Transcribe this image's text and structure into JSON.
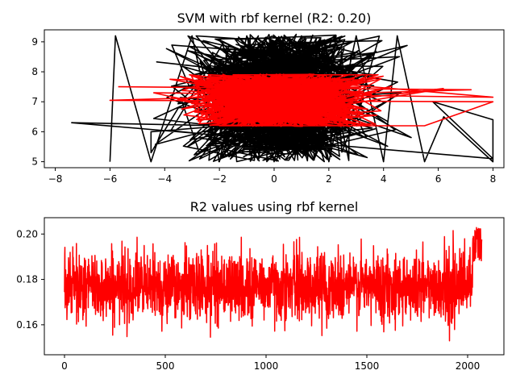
{
  "chart_data": [
    {
      "type": "line",
      "title": "SVM with rbf kernel (R2: 0.20)",
      "xlabel": "",
      "ylabel": "",
      "xlim": [
        -8.4,
        8.4
      ],
      "ylim": [
        4.8,
        9.4
      ],
      "xticks": [
        -8,
        -6,
        -4,
        -2,
        0,
        2,
        4,
        6,
        8
      ],
      "yticks": [
        5,
        6,
        7,
        8,
        9
      ],
      "grid": false,
      "series": [
        {
          "color": "#000000",
          "description": "actual values (dense zig-zag)",
          "envelope": [
            [
              -6,
              5.0
            ],
            [
              -5.8,
              9.2
            ],
            [
              -4.5,
              5.0
            ],
            [
              -3,
              9.2
            ],
            [
              -2,
              5.0
            ],
            [
              -1,
              9.2
            ],
            [
              0,
              5.0
            ],
            [
              1,
              9.2
            ],
            [
              2,
              5.0
            ],
            [
              3,
              9.2
            ],
            [
              4,
              5.0
            ],
            [
              4.5,
              9.2
            ],
            [
              5.5,
              5.0
            ],
            [
              6.2,
              6.5
            ],
            [
              8,
              5.0
            ],
            [
              8,
              6.4
            ],
            [
              5.8,
              7.0
            ],
            [
              8,
              5.1
            ],
            [
              -7.4,
              6.3
            ],
            [
              -1.8,
              6.2
            ],
            [
              -4.5,
              6.0
            ],
            [
              -4.5,
              5.3
            ],
            [
              -3.5,
              6.8
            ]
          ]
        },
        {
          "color": "#ff0000",
          "description": "predicted values (dense zig-zag)",
          "envelope": [
            [
              -5.7,
              7.5
            ],
            [
              7.2,
              7.4
            ],
            [
              -6,
              7.05
            ],
            [
              8,
              7.0
            ],
            [
              5.5,
              6.2
            ],
            [
              -2,
              6.2
            ],
            [
              3.8,
              7.9
            ],
            [
              -1.5,
              7.9
            ],
            [
              8,
              7.15
            ],
            [
              -4.4,
              7.3
            ]
          ]
        }
      ]
    },
    {
      "type": "line",
      "title": "R2 values using rbf kernel",
      "xlabel": "",
      "ylabel": "",
      "xlim": [
        -100,
        2180
      ],
      "ylim": [
        0.1468,
        0.2072
      ],
      "xticks": [
        0,
        500,
        1000,
        1500,
        2000
      ],
      "yticks": [
        0.16,
        0.18,
        0.2
      ],
      "yticklabels": [
        "0.16",
        "0.18",
        "0.20"
      ],
      "grid": false,
      "series": [
        {
          "color": "#ff0000",
          "n_points": 2071,
          "mean": 0.177,
          "range": [
            0.148,
            0.205
          ],
          "final_segment": {
            "x_start": 2025,
            "x_end": 2070,
            "range": [
              0.185,
              0.205
            ]
          }
        }
      ]
    }
  ]
}
